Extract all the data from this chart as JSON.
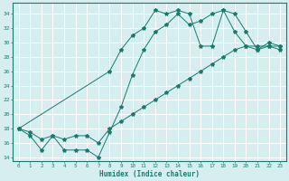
{
  "line1_x": [
    0,
    1,
    2,
    3,
    4,
    5,
    6,
    7,
    8,
    9,
    10,
    11,
    12,
    13,
    14,
    15,
    16,
    17,
    18,
    19,
    20,
    21,
    22,
    23
  ],
  "line1_y": [
    18,
    17,
    15,
    17,
    15,
    15,
    15,
    14,
    17.5,
    21,
    25.5,
    29,
    31.5,
    32.5,
    34,
    32.5,
    33,
    34,
    34.5,
    34,
    31.5,
    29,
    30,
    29.5
  ],
  "line2_x": [
    0,
    1,
    2,
    3,
    4,
    5,
    6,
    7,
    8,
    9,
    10,
    11,
    12,
    13,
    14,
    15,
    16,
    17,
    18,
    19,
    20,
    21,
    22,
    23
  ],
  "line2_y": [
    18,
    17.5,
    16.5,
    17,
    16.5,
    17,
    17,
    16,
    18,
    19,
    20,
    21,
    22,
    23,
    24,
    25,
    26,
    27,
    28,
    29,
    29.5,
    29,
    29.5,
    29
  ],
  "line3_x": [
    0,
    8,
    9,
    10,
    11,
    12,
    13,
    14,
    15,
    16,
    17,
    18,
    19,
    20,
    21,
    22,
    23
  ],
  "line3_y": [
    18,
    26,
    29,
    31,
    32,
    34.5,
    34,
    34.5,
    34,
    29.5,
    29.5,
    34.5,
    31.5,
    29.5,
    29.5,
    29.5,
    29.5
  ],
  "color": "#1a7a6e",
  "bg_color": "#d6eef0",
  "grid_color": "#ffffff",
  "xlabel": "Humidex (Indice chaleur)",
  "xlim": [
    -0.5,
    23.5
  ],
  "ylim": [
    13.5,
    35.5
  ],
  "yticks": [
    14,
    16,
    18,
    20,
    22,
    24,
    26,
    28,
    30,
    32,
    34
  ],
  "xticks": [
    0,
    1,
    2,
    3,
    4,
    5,
    6,
    7,
    8,
    9,
    10,
    11,
    12,
    13,
    14,
    15,
    16,
    17,
    18,
    19,
    20,
    21,
    22,
    23
  ]
}
